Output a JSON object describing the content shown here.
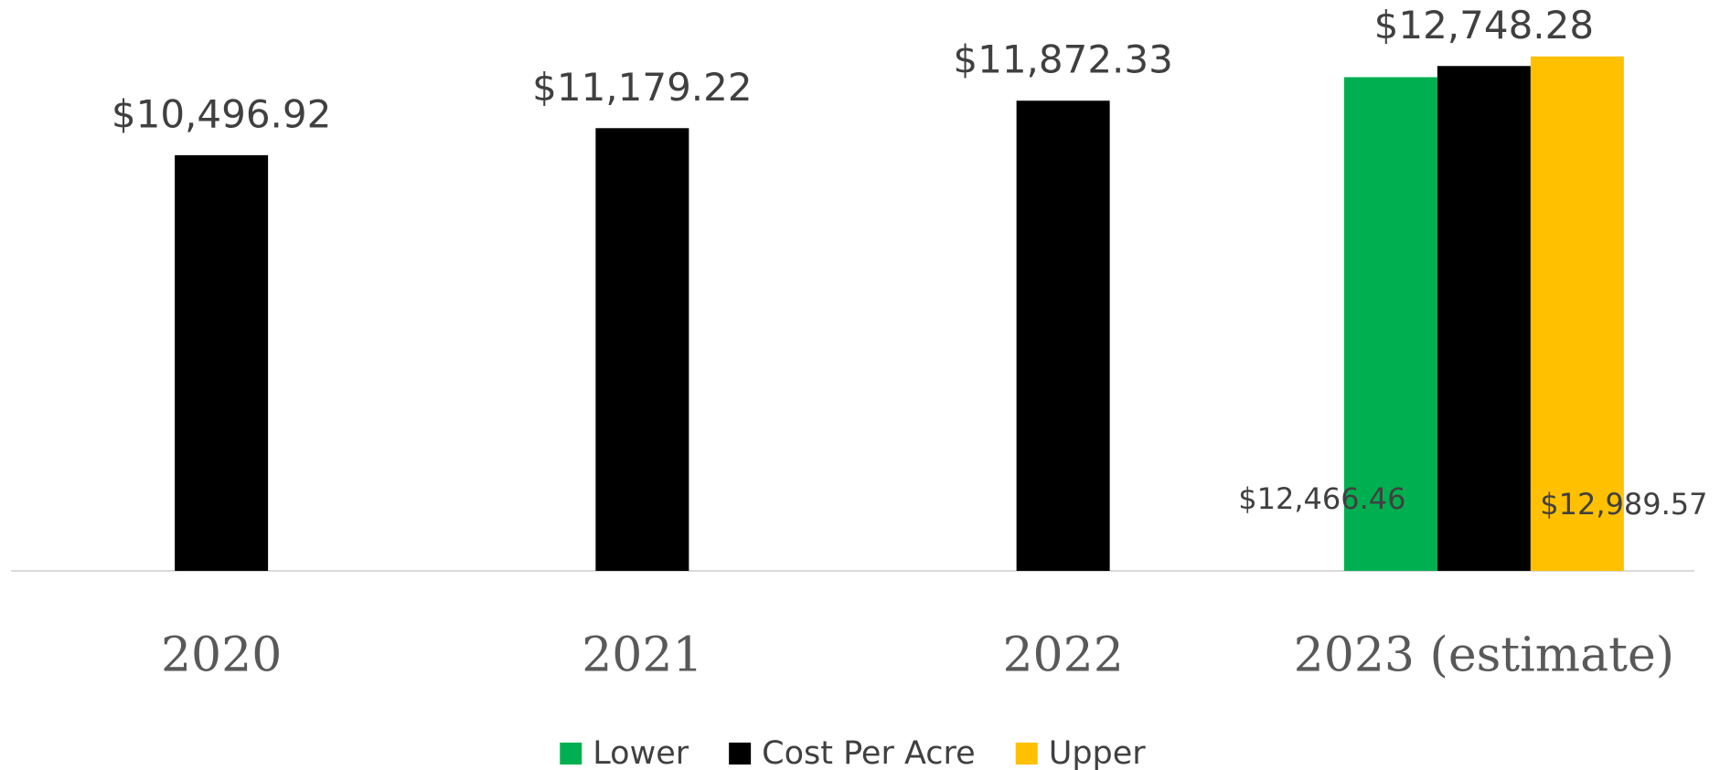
{
  "chart_data": {
    "type": "bar",
    "categories": [
      "2020",
      "2021",
      "2022",
      "2023 (estimate)"
    ],
    "series": [
      {
        "name": "Lower",
        "color": "#00b050",
        "values": [
          null,
          null,
          null,
          12466.46
        ],
        "value_labels": [
          null,
          null,
          null,
          "$12,466.46"
        ]
      },
      {
        "name": "Cost Per Acre",
        "color": "#000000",
        "values": [
          10496.92,
          11179.22,
          11872.33,
          12748.28
        ],
        "value_labels": [
          "$10,496.92",
          "$11,179.22",
          "$11,872.33",
          "$12,748.28"
        ]
      },
      {
        "name": "Upper",
        "color": "#ffc000",
        "values": [
          null,
          null,
          null,
          12989.57
        ],
        "value_labels": [
          null,
          null,
          null,
          "$12,989.57"
        ]
      }
    ],
    "ylim": [
      0,
      14000
    ],
    "legend": "bottom"
  }
}
